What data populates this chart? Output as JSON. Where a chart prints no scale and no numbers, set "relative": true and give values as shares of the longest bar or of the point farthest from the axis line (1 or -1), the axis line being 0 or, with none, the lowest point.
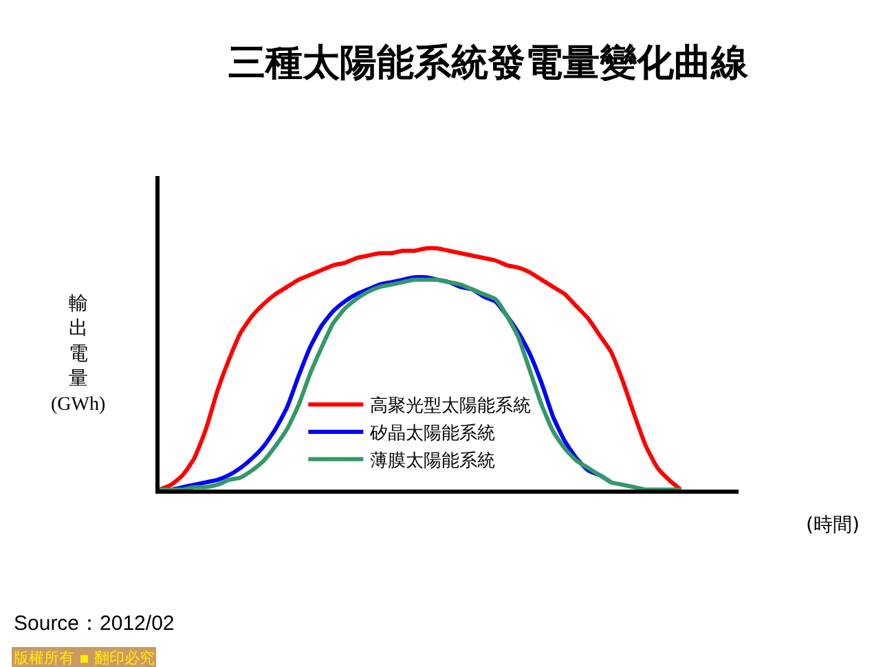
{
  "chart_data": {
    "type": "line",
    "title": "三種太陽能系統發電量變化曲線",
    "xlabel": "(時間)",
    "ylabel": "輸出電量(GWh)",
    "relative": true,
    "legend": "bottom",
    "categories": [
      null,
      null,
      null,
      null,
      null,
      null,
      null,
      null,
      null,
      null,
      null,
      null,
      null,
      null,
      null,
      null,
      null,
      null,
      null,
      null,
      null,
      null,
      null,
      null,
      null,
      null,
      null,
      null,
      null,
      null,
      null,
      null,
      null,
      null,
      null,
      null,
      null,
      null,
      null,
      null,
      null,
      null,
      null,
      null,
      null,
      null,
      null,
      null,
      null,
      null,
      null
    ],
    "series": [
      {
        "name": "高聚光型太陽能系統",
        "color": "#ff0000",
        "values": [
          0,
          0.02,
          0.06,
          0.13,
          0.25,
          0.41,
          0.54,
          0.65,
          0.72,
          0.77,
          0.81,
          0.84,
          0.87,
          0.89,
          0.91,
          0.93,
          0.94,
          0.96,
          0.97,
          0.98,
          0.98,
          0.99,
          0.99,
          1,
          1,
          0.99,
          0.98,
          0.97,
          0.96,
          0.95,
          0.93,
          0.92,
          0.9,
          0.87,
          0.84,
          0.81,
          0.76,
          0.71,
          0.64,
          0.57,
          0.45,
          0.31,
          0.18,
          0.09,
          0.04,
          0,
          null,
          null,
          null,
          null,
          null
        ]
      },
      {
        "name": "矽晶太陽能系統",
        "color": "#0000ff",
        "values": [
          0,
          0,
          0.01,
          0.02,
          0.03,
          0.04,
          0.06,
          0.09,
          0.13,
          0.18,
          0.25,
          0.34,
          0.47,
          0.59,
          0.68,
          0.74,
          0.78,
          0.81,
          0.83,
          0.85,
          0.86,
          0.87,
          0.88,
          0.88,
          0.87,
          0.86,
          0.84,
          0.83,
          0.8,
          0.78,
          0.72,
          0.65,
          0.56,
          0.44,
          0.3,
          0.2,
          0.13,
          0.08,
          0.06,
          0.03,
          null,
          null,
          null,
          null,
          null,
          null,
          null,
          null,
          null,
          null,
          null
        ]
      },
      {
        "name": "薄膜太陽能系統",
        "color": "#339966",
        "values": [
          0,
          0,
          0,
          0.01,
          0.01,
          0.02,
          0.04,
          0.05,
          0.08,
          0.12,
          0.18,
          0.25,
          0.35,
          0.48,
          0.59,
          0.69,
          0.75,
          0.79,
          0.82,
          0.84,
          0.85,
          0.86,
          0.87,
          0.87,
          0.87,
          0.86,
          0.85,
          0.83,
          0.81,
          0.79,
          0.72,
          0.63,
          0.49,
          0.35,
          0.24,
          0.17,
          0.12,
          0.09,
          0.06,
          0.03,
          0.02,
          0.01,
          0,
          0,
          0,
          0,
          null,
          null,
          null,
          null,
          null
        ]
      }
    ],
    "annotations": [
      "Source：2012/02",
      "版權所有 ▪ 翻印必究"
    ]
  }
}
